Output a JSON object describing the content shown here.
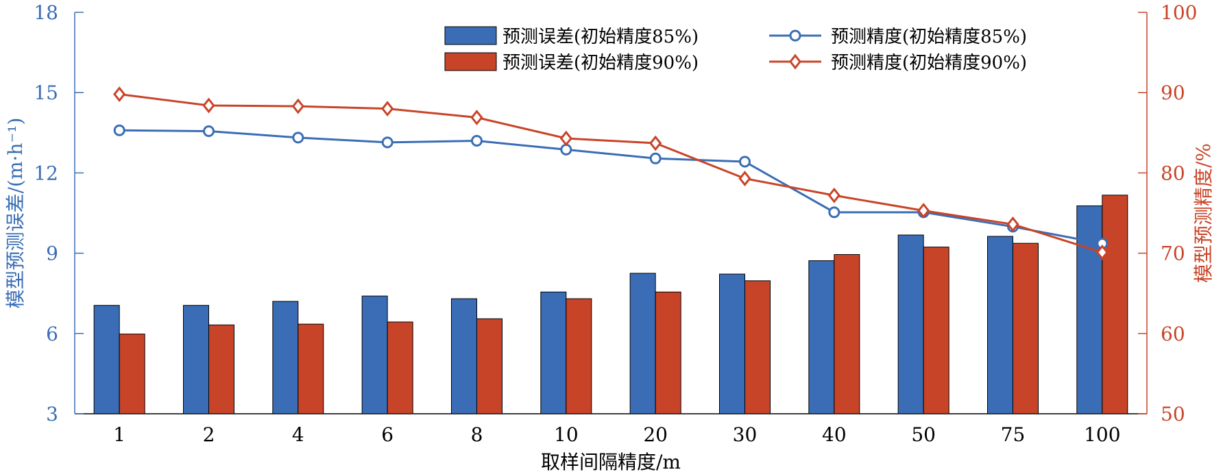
{
  "chart_data": {
    "type": "bar",
    "categories": [
      "1",
      "2",
      "4",
      "6",
      "8",
      "10",
      "20",
      "30",
      "40",
      "50",
      "75",
      "100"
    ],
    "xlabel": "取样间隔精度/m",
    "ylabel_left": "模型预测误差/(m·h⁻¹)",
    "ylabel_right": "模型预测精度/%",
    "ylim_left": [
      3,
      18
    ],
    "yticks_left": [
      "3",
      "6",
      "9",
      "12",
      "15",
      "18"
    ],
    "ylim_right": [
      50,
      100
    ],
    "yticks_right": [
      "50",
      "60",
      "70",
      "80",
      "90",
      "100"
    ],
    "bar_series": [
      {
        "name": "预测误差(初始精度85%)",
        "color": "#3a6db5",
        "values": [
          7.05,
          7.05,
          7.2,
          7.4,
          7.3,
          7.55,
          8.25,
          8.22,
          8.72,
          9.68,
          9.63,
          10.77
        ]
      },
      {
        "name": "预测误差(初始精度90%)",
        "color": "#c84428",
        "values": [
          5.98,
          6.32,
          6.35,
          6.43,
          6.55,
          7.3,
          7.55,
          7.97,
          8.95,
          9.23,
          9.37,
          11.17
        ]
      }
    ],
    "line_series": [
      {
        "name": "预测精度(初始精度85%)",
        "color": "#3a6db5",
        "marker": "circle",
        "values": [
          85.3,
          85.2,
          84.4,
          83.8,
          84.0,
          82.9,
          81.8,
          81.4,
          75.1,
          75.1,
          73.3,
          71.2
        ]
      },
      {
        "name": "预测精度(初始精度90%)",
        "color": "#c84428",
        "marker": "diamond",
        "values": [
          89.8,
          88.4,
          88.3,
          88.0,
          86.9,
          84.3,
          83.7,
          79.3,
          77.2,
          75.3,
          73.6,
          70.1
        ]
      }
    ],
    "legend_position": "top-right",
    "grid": false
  }
}
